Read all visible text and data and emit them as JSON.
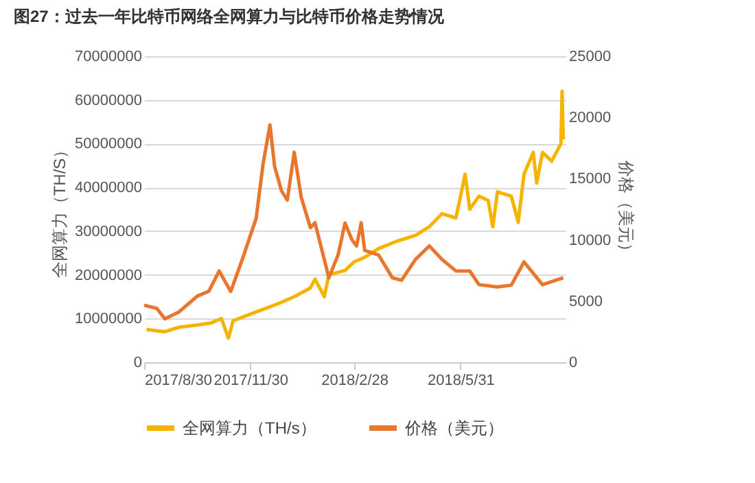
{
  "chart_data": {
    "type": "line",
    "title": "图27：过去一年比特币网络全网算力与比特币价格走势情况",
    "ylabel": "全网算力（TH/S）",
    "y2label": "价格（美元）",
    "xlim": [
      "2017-08-30",
      "2018-08-30"
    ],
    "xticks": [
      {
        "value": "2017-08-30",
        "label": "2017/8/30"
      },
      {
        "value": "2017-11-30",
        "label": "2017/11/30"
      },
      {
        "value": "2018-02-28",
        "label": "2018/2/28"
      },
      {
        "value": "2018-05-31",
        "label": "2018/5/31"
      }
    ],
    "ylim": [
      0,
      70000000
    ],
    "yticks": [
      0,
      10000000,
      20000000,
      30000000,
      40000000,
      50000000,
      60000000,
      70000000
    ],
    "y2lim": [
      0,
      25000
    ],
    "y2ticks": [
      0,
      5000,
      10000,
      15000,
      20000,
      25000
    ],
    "grid": "y",
    "legend": "bottom",
    "series": [
      {
        "name": "全网算力（TH/s）",
        "color": "#f5b400",
        "x": [
          "2017-09-01",
          "2017-09-17",
          "2017-09-29",
          "2017-10-15",
          "2017-10-27",
          "2017-11-05",
          "2017-11-11",
          "2017-11-15",
          "2017-11-30",
          "2017-12-15",
          "2017-12-25",
          "2018-01-07",
          "2018-01-21",
          "2018-01-25",
          "2018-02-02",
          "2018-02-06",
          "2018-02-20",
          "2018-02-28",
          "2018-03-09",
          "2018-03-21",
          "2018-04-06",
          "2018-04-22",
          "2018-05-04",
          "2018-05-15",
          "2018-05-27",
          "2018-06-04",
          "2018-06-08",
          "2018-06-16",
          "2018-06-24",
          "2018-06-28",
          "2018-07-02",
          "2018-07-14",
          "2018-07-20",
          "2018-07-25",
          "2018-08-02",
          "2018-08-05",
          "2018-08-10",
          "2018-08-18",
          "2018-08-26",
          "2018-08-27",
          "2018-08-28"
        ],
        "values": [
          7500000,
          7000000,
          8000000,
          8500000,
          9000000,
          10000000,
          5500000,
          9500000,
          11000000,
          12500000,
          13500000,
          15000000,
          17000000,
          19000000,
          15000000,
          20000000,
          21000000,
          23000000,
          24000000,
          26000000,
          27700000,
          29000000,
          31000000,
          34000000,
          33000000,
          43000000,
          35000000,
          38000000,
          37000000,
          31000000,
          39000000,
          38000000,
          32000000,
          43000000,
          48000000,
          41000000,
          48000000,
          46000000,
          50000000,
          62000000,
          51000000
        ]
      },
      {
        "name": "价格（美元）",
        "color": "#e8762c",
        "axis": "y2",
        "x": [
          "2017-08-30",
          "2017-09-10",
          "2017-09-17",
          "2017-09-29",
          "2017-10-15",
          "2017-10-25",
          "2017-11-03",
          "2017-11-13",
          "2017-11-23",
          "2017-12-05",
          "2017-12-11",
          "2017-12-17",
          "2017-12-21",
          "2017-12-27",
          "2018-01-01",
          "2018-01-07",
          "2018-01-13",
          "2018-01-21",
          "2018-01-25",
          "2018-02-02",
          "2018-02-06",
          "2018-02-14",
          "2018-02-20",
          "2018-02-26",
          "2018-03-02",
          "2018-03-06",
          "2018-03-09",
          "2018-03-21",
          "2018-04-02",
          "2018-04-10",
          "2018-04-22",
          "2018-05-04",
          "2018-05-15",
          "2018-05-27",
          "2018-06-08",
          "2018-06-16",
          "2018-07-02",
          "2018-07-14",
          "2018-07-25",
          "2018-08-10",
          "2018-08-28"
        ],
        "values": [
          4660,
          4400,
          3550,
          4100,
          5400,
          5800,
          7460,
          5780,
          8400,
          11750,
          16200,
          19400,
          16000,
          14000,
          13250,
          17160,
          13500,
          11000,
          11400,
          8400,
          6900,
          8770,
          11380,
          10000,
          9500,
          11400,
          9140,
          8770,
          6900,
          6700,
          8400,
          9500,
          8400,
          7460,
          7460,
          6340,
          6150,
          6300,
          8200,
          6340,
          6900
        ]
      }
    ]
  }
}
